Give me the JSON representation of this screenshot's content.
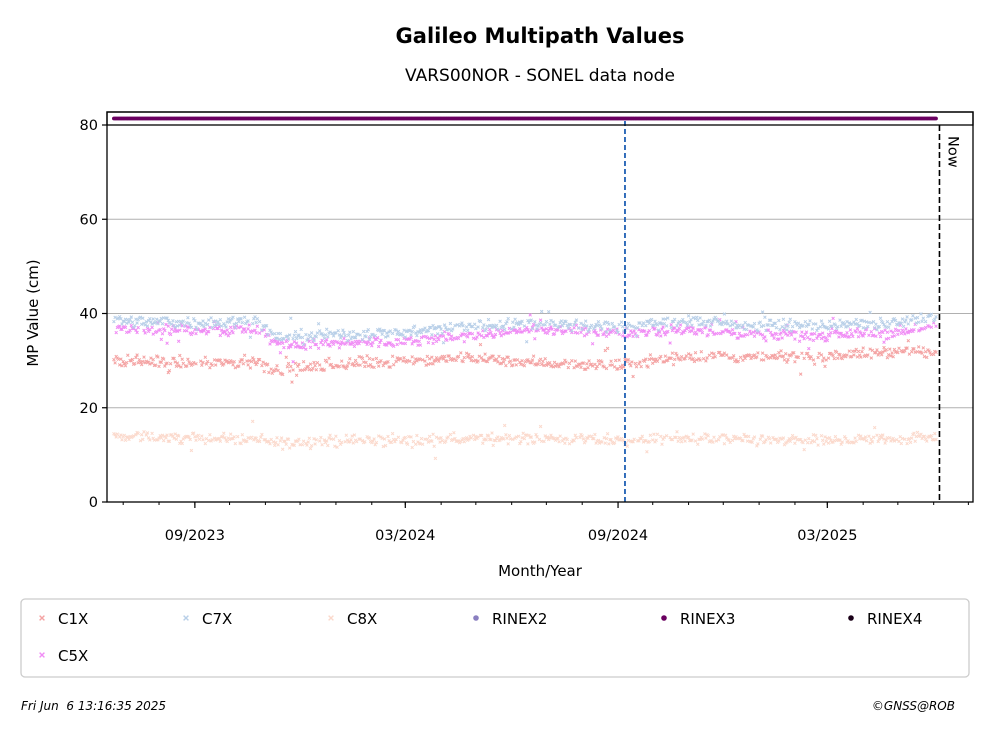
{
  "chart_data": {
    "type": "scatter",
    "title": "Galileo Multipath Values",
    "subtitle": "VARS00NOR - SONEL data node",
    "xlabel": "Month/Year",
    "ylabel": "MP Value (cm)",
    "ylim": [
      0,
      80
    ],
    "yticks": [
      "0",
      "20",
      "40",
      "60",
      "80"
    ],
    "xlim": [
      "2023-06-17",
      "2025-07-05"
    ],
    "xticks": [
      {
        "date": "2023-09-01",
        "label": "09/2023"
      },
      {
        "date": "2024-03-01",
        "label": "03/2024"
      },
      {
        "date": "2024-09-01",
        "label": "09/2024"
      },
      {
        "date": "2025-03-01",
        "label": "03/2025"
      }
    ],
    "grid": "horizontal",
    "legend_position": "bottom",
    "now_line": {
      "date": "2025-06-06",
      "label": "Now",
      "color": "#000000"
    },
    "marker_line": {
      "date": "2024-09-07",
      "color": "#1f5fb4"
    },
    "date_range": [
      "2023-06-23",
      "2025-06-03"
    ],
    "series": [
      {
        "name": "C1X",
        "color": "#f4a3a3",
        "marker": "x",
        "points": [
          [
            "2023-06-23",
            30.0
          ],
          [
            "2023-09-01",
            29.5
          ],
          [
            "2023-10-25",
            29.8
          ],
          [
            "2023-11-10",
            28.0
          ],
          [
            "2024-01-01",
            29.0
          ],
          [
            "2024-03-01",
            30.0
          ],
          [
            "2024-05-01",
            30.5
          ],
          [
            "2024-07-01",
            29.5
          ],
          [
            "2024-09-01",
            29.0
          ],
          [
            "2024-11-01",
            31.0
          ],
          [
            "2025-01-01",
            30.5
          ],
          [
            "2025-03-01",
            31.0
          ],
          [
            "2025-05-01",
            32.0
          ],
          [
            "2025-06-03",
            31.5
          ]
        ]
      },
      {
        "name": "C7X",
        "color": "#b8cfe8",
        "marker": "x",
        "points": [
          [
            "2023-06-23",
            38.5
          ],
          [
            "2023-09-01",
            38.0
          ],
          [
            "2023-10-25",
            38.5
          ],
          [
            "2023-11-10",
            35.0
          ],
          [
            "2024-01-01",
            35.5
          ],
          [
            "2024-03-01",
            36.0
          ],
          [
            "2024-05-01",
            37.5
          ],
          [
            "2024-07-01",
            38.0
          ],
          [
            "2024-09-01",
            37.0
          ],
          [
            "2024-11-01",
            38.5
          ],
          [
            "2025-01-01",
            37.5
          ],
          [
            "2025-03-01",
            37.5
          ],
          [
            "2025-05-01",
            38.0
          ],
          [
            "2025-06-03",
            39.5
          ]
        ]
      },
      {
        "name": "C8X",
        "color": "#fbd9cc",
        "marker": "x",
        "points": [
          [
            "2023-06-23",
            14.0
          ],
          [
            "2023-09-01",
            13.5
          ],
          [
            "2023-10-25",
            13.5
          ],
          [
            "2023-11-10",
            12.5
          ],
          [
            "2024-01-01",
            13.0
          ],
          [
            "2024-03-01",
            13.0
          ],
          [
            "2024-05-01",
            13.5
          ],
          [
            "2024-07-01",
            13.5
          ],
          [
            "2024-09-01",
            13.0
          ],
          [
            "2024-11-01",
            13.5
          ],
          [
            "2025-01-01",
            13.0
          ],
          [
            "2025-03-01",
            13.0
          ],
          [
            "2025-05-01",
            13.5
          ],
          [
            "2025-06-03",
            14.0
          ]
        ]
      },
      {
        "name": "C5X",
        "color": "#f08cf5",
        "marker": "x",
        "points": [
          [
            "2023-06-23",
            37.0
          ],
          [
            "2023-09-01",
            36.5
          ],
          [
            "2023-10-25",
            36.5
          ],
          [
            "2023-11-10",
            33.5
          ],
          [
            "2024-01-01",
            33.5
          ],
          [
            "2024-03-01",
            34.0
          ],
          [
            "2024-05-01",
            35.5
          ],
          [
            "2024-07-01",
            36.5
          ],
          [
            "2024-09-01",
            36.0
          ],
          [
            "2024-11-01",
            36.5
          ],
          [
            "2025-01-01",
            35.5
          ],
          [
            "2025-03-01",
            35.5
          ],
          [
            "2025-05-01",
            36.0
          ],
          [
            "2025-06-03",
            37.5
          ]
        ]
      },
      {
        "name": "RINEX2",
        "color": "#8a7fc0",
        "marker": "o",
        "points": []
      },
      {
        "name": "RINEX3",
        "color": "#6a0060",
        "marker": "o",
        "band": "top",
        "range": [
          "2023-06-23",
          "2025-06-03"
        ]
      },
      {
        "name": "RINEX4",
        "color": "#1a0018",
        "marker": "o",
        "points": []
      }
    ],
    "legend_order": [
      "C1X",
      "C7X",
      "C8X",
      "RINEX2",
      "RINEX3",
      "RINEX4",
      "C5X"
    ]
  },
  "footer": {
    "timestamp": "Fri Jun  6 13:16:35 2025",
    "credit": "©GNSS@ROB"
  }
}
